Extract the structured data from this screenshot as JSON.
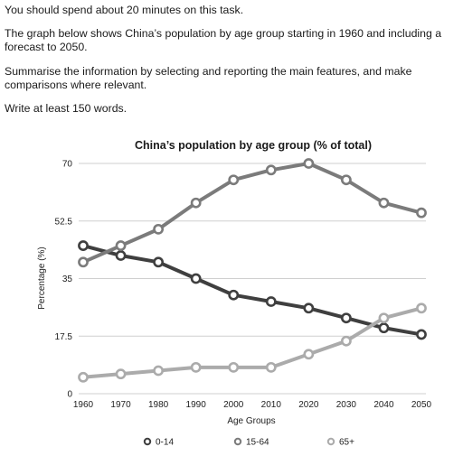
{
  "task": {
    "p1": "You should spend about 20 minutes on this task.",
    "p2": "The graph below shows China’s population by age group starting in 1960 and including a forecast to 2050.",
    "p3": "Summarise the information by selecting and reporting the main features, and make comparisons where relevant.",
    "p4": "Write at least 150 words."
  },
  "colors": {
    "series_0_14": "#3f3f3f",
    "series_15_64": "#7b7b7b",
    "series_65_plus": "#ababab",
    "grid": "#cfcfcf"
  },
  "chart_data": {
    "type": "line",
    "title": "China’s population by age group (% of total)",
    "xlabel": "Age Groups",
    "ylabel": "Percentage (%)",
    "x": [
      1960,
      1970,
      1980,
      1990,
      2000,
      2010,
      2020,
      2030,
      2040,
      2050
    ],
    "ylim": [
      0,
      70
    ],
    "yticks": [
      "0",
      "17.5",
      "35",
      "52.5",
      "70"
    ],
    "grid": true,
    "legend_position": "bottom",
    "series": [
      {
        "name": "0-14",
        "values": [
          45,
          42,
          40,
          35,
          30,
          28,
          26,
          23,
          20,
          18
        ]
      },
      {
        "name": "15-64",
        "values": [
          40,
          45,
          50,
          58,
          65,
          68,
          70,
          65,
          58,
          55
        ]
      },
      {
        "name": "65+",
        "values": [
          5,
          6,
          7,
          8,
          8,
          8,
          12,
          16,
          23,
          26
        ]
      }
    ]
  }
}
